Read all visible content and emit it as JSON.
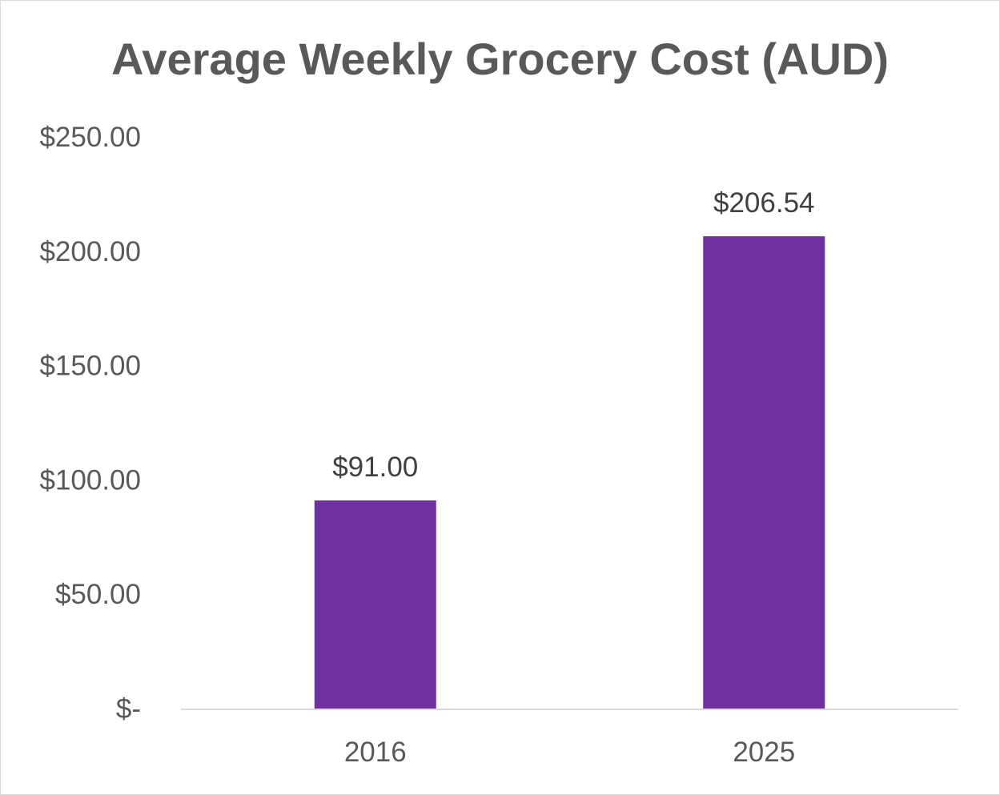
{
  "chart_data": {
    "type": "bar",
    "title": "Average Weekly Grocery Cost (AUD)",
    "categories": [
      "2016",
      "2025"
    ],
    "values": [
      91.0,
      206.54
    ],
    "value_labels": [
      "$91.00",
      "$206.54"
    ],
    "ylim": [
      0,
      250
    ],
    "yticks": [
      0,
      50,
      100,
      150,
      200,
      250
    ],
    "ytick_labels": [
      "$-",
      "$50.00",
      "$100.00",
      "$150.00",
      "$200.00",
      "$250.00"
    ],
    "xlabel": "",
    "ylabel": "",
    "grid": false,
    "legend": "none",
    "bar_color": "#7030a0",
    "axis_color": "#d9d9d9"
  }
}
